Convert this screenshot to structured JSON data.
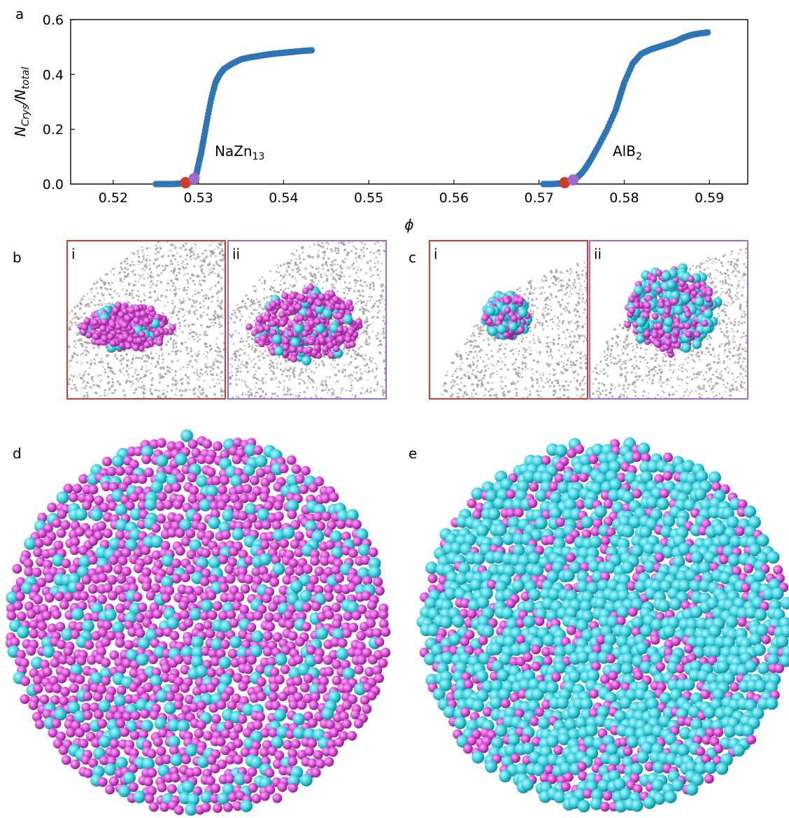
{
  "panel_letters": {
    "a": "a",
    "b": "b",
    "c": "c",
    "d": "d",
    "e": "e"
  },
  "inset_labels": {
    "b_i": "i",
    "b_ii": "ii",
    "c_i": "i",
    "c_ii": "ii"
  },
  "colors": {
    "series": "#2e75b6",
    "marker_i": "#d03b2a",
    "marker_ii": "#9c6dd0",
    "frame_i": "#d03b2a",
    "frame_ii": "#9c6dd0",
    "particle_large": "#3fd3e0",
    "particle_small": "#d94fd6",
    "background_dots": "#9a9a9a"
  },
  "chart_data": {
    "type": "scatter",
    "title": "",
    "xlabel": "ϕ",
    "ylabel_main": "N",
    "ylabel_sub1": "Crys",
    "ylabel_mid": "/N",
    "ylabel_sub2": "total",
    "xlim": [
      0.515,
      0.5945
    ],
    "ylim": [
      0.0,
      0.6
    ],
    "xticks": [
      0.52,
      0.53,
      0.54,
      0.55,
      0.56,
      0.57,
      0.58,
      0.59
    ],
    "xtick_labels": [
      "0.52",
      "0.53",
      "0.54",
      "0.55",
      "0.56",
      "0.57",
      "0.58",
      "0.59"
    ],
    "yticks": [
      0.0,
      0.2,
      0.4,
      0.6
    ],
    "ytick_labels": [
      "0.0",
      "0.2",
      "0.4",
      "0.6"
    ],
    "grid": false,
    "series": [
      {
        "label_main": "NaZn",
        "label_sub": "13",
        "x": [
          0.525,
          0.526,
          0.527,
          0.528,
          0.5285,
          0.529,
          0.5295,
          0.5298,
          0.53,
          0.5303,
          0.5306,
          0.531,
          0.5315,
          0.532,
          0.5325,
          0.533,
          0.534,
          0.535,
          0.536,
          0.537,
          0.538,
          0.539,
          0.54,
          0.541,
          0.542,
          0.5433
        ],
        "y": [
          0.0,
          0.0,
          0.0,
          0.002,
          0.005,
          0.01,
          0.02,
          0.04,
          0.07,
          0.11,
          0.16,
          0.23,
          0.31,
          0.37,
          0.4,
          0.42,
          0.44,
          0.455,
          0.462,
          0.467,
          0.472,
          0.476,
          0.479,
          0.482,
          0.485,
          0.488
        ]
      },
      {
        "label_main": "AlB",
        "label_sub": "2",
        "x": [
          0.5705,
          0.5715,
          0.5725,
          0.573,
          0.5735,
          0.574,
          0.5745,
          0.575,
          0.5755,
          0.576,
          0.577,
          0.578,
          0.579,
          0.5795,
          0.58,
          0.581,
          0.582,
          0.583,
          0.584,
          0.585,
          0.586,
          0.587,
          0.588,
          0.589,
          0.5898
        ],
        "y": [
          0.0,
          0.0,
          0.002,
          0.005,
          0.01,
          0.015,
          0.025,
          0.04,
          0.06,
          0.085,
          0.14,
          0.2,
          0.27,
          0.32,
          0.37,
          0.44,
          0.475,
          0.49,
          0.5,
          0.51,
          0.52,
          0.535,
          0.545,
          0.55,
          0.553
        ]
      }
    ],
    "highlight_points": [
      {
        "x": 0.5285,
        "y": 0.005,
        "ref": "i"
      },
      {
        "x": 0.5295,
        "y": 0.02,
        "ref": "ii"
      },
      {
        "x": 0.573,
        "y": 0.005,
        "ref": "i"
      },
      {
        "x": 0.574,
        "y": 0.015,
        "ref": "ii"
      }
    ]
  }
}
